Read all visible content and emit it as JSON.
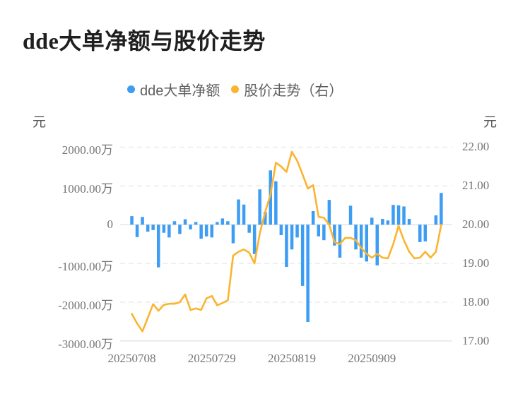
{
  "page": {
    "title": "dde大单净额与股价走势"
  },
  "legend": {
    "items": [
      {
        "label": "dde大单净额",
        "color": "#3D9DF3"
      },
      {
        "label": "股价走势（右）",
        "color": "#FBB42F"
      }
    ]
  },
  "left_axis": {
    "unit": "元",
    "labels": [
      "2000.00万",
      "1000.00万",
      "0",
      "-1000.00万",
      "-2000.00万",
      "-3000.00万"
    ]
  },
  "right_axis": {
    "unit": "元",
    "labels": [
      "22.00",
      "21.00",
      "20.00",
      "19.00",
      "18.00",
      "17.00"
    ]
  },
  "x_axis": {
    "labels": [
      "20250708",
      "20250729",
      "20250819",
      "20250909"
    ],
    "label_indices": [
      0,
      15,
      30,
      45
    ]
  },
  "colors": {
    "bar": "#3D9DF3",
    "line": "#FBB42F",
    "grid_dashed": "#e7e7e7",
    "grid_solid": "#e2e2e2"
  },
  "chart_data": {
    "type": "bar+line",
    "title": "dde大单净额与股价走势",
    "point_count": 59,
    "x_ticks": [
      {
        "index": 0,
        "label": "20250708"
      },
      {
        "index": 15,
        "label": "20250729"
      },
      {
        "index": 30,
        "label": "20250819"
      },
      {
        "index": 45,
        "label": "20250909"
      }
    ],
    "left_axis_unit": "元",
    "right_axis_unit": "元",
    "left_ylim_wan": [
      -3000,
      2000
    ],
    "right_ylim": [
      17.0,
      22.0
    ],
    "grid": "horizontal-dashed",
    "legend_position": "top-center",
    "series": [
      {
        "name": "dde大单净额",
        "type": "bar",
        "axis": "left",
        "unit": "万元",
        "color": "#3D9DF3",
        "values_wan": [
          220,
          -320,
          200,
          -180,
          -140,
          -1100,
          -210,
          -330,
          90,
          -240,
          140,
          -120,
          70,
          -360,
          -300,
          -330,
          70,
          160,
          90,
          -480,
          650,
          520,
          -210,
          -760,
          910,
          330,
          1400,
          1120,
          -270,
          -1090,
          -640,
          -330,
          -1580,
          -2510,
          350,
          -300,
          -400,
          640,
          -540,
          -850,
          0,
          490,
          -640,
          -850,
          -950,
          180,
          -1050,
          150,
          110,
          510,
          500,
          470,
          150,
          0,
          -450,
          -430,
          0,
          240,
          820
        ]
      },
      {
        "name": "股价走势（右）",
        "type": "line",
        "axis": "right",
        "unit": "元",
        "color": "#FBB42F",
        "values": [
          17.7,
          17.45,
          17.25,
          17.6,
          17.95,
          17.78,
          17.93,
          17.96,
          17.96,
          18.0,
          18.2,
          17.8,
          17.84,
          17.8,
          18.1,
          18.16,
          17.92,
          17.98,
          18.05,
          19.2,
          19.3,
          19.36,
          19.28,
          19.0,
          19.78,
          20.33,
          20.78,
          21.6,
          21.5,
          21.36,
          21.88,
          21.65,
          21.3,
          20.93,
          21.02,
          20.2,
          20.18,
          20.0,
          19.55,
          19.5,
          19.66,
          19.66,
          19.6,
          19.4,
          19.25,
          19.15,
          19.25,
          19.15,
          19.13,
          19.5,
          19.97,
          19.6,
          19.3,
          19.13,
          19.15,
          19.3,
          19.15,
          19.3,
          20.0
        ]
      }
    ]
  }
}
